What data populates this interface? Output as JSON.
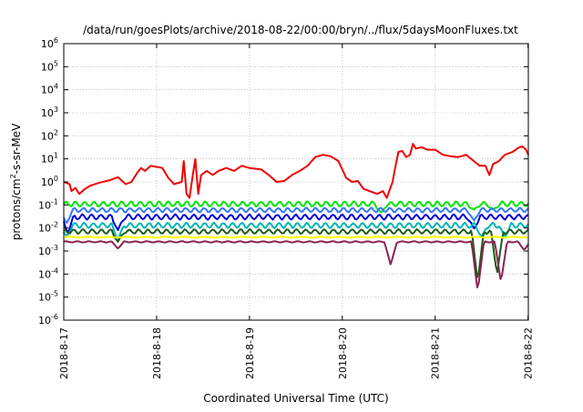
{
  "chart_data": {
    "type": "line",
    "title": "/data/run/goesPlots/archive/2018-08-22/00:00/bryn/../flux/5daysMoonFluxes.txt",
    "xlabel": "Coordinated Universal Time (UTC)",
    "ylabel_parts": {
      "before": "protons/cm",
      "sup": "2",
      "after": "-s-sr-MeV"
    },
    "y_scale": "log",
    "ylim": [
      1e-06,
      1000000.0
    ],
    "y_ticks": [
      {
        "value": 1e-06,
        "base": "10",
        "exp": "-6"
      },
      {
        "value": 1e-05,
        "base": "10",
        "exp": "-5"
      },
      {
        "value": 0.0001,
        "base": "10",
        "exp": "-4"
      },
      {
        "value": 0.001,
        "base": "10",
        "exp": "-3"
      },
      {
        "value": 0.01,
        "base": "10",
        "exp": "-2"
      },
      {
        "value": 0.1,
        "base": "10",
        "exp": "-1"
      },
      {
        "value": 1,
        "base": "10",
        "exp": "0"
      },
      {
        "value": 10,
        "base": "10",
        "exp": "1"
      },
      {
        "value": 100,
        "base": "10",
        "exp": "2"
      },
      {
        "value": 1000,
        "base": "10",
        "exp": "3"
      },
      {
        "value": 10000,
        "base": "10",
        "exp": "4"
      },
      {
        "value": 100000,
        "base": "10",
        "exp": "5"
      },
      {
        "value": 1000000,
        "base": "10",
        "exp": "6"
      }
    ],
    "xlim": [
      "2018-08-17T00:00",
      "2018-08-22T00:05"
    ],
    "x_ticks": [
      {
        "value": "2018-08-17T00:00",
        "label": "2018-8-17"
      },
      {
        "value": "2018-08-18T00:00",
        "label": "2018-8-18"
      },
      {
        "value": "2018-08-19T00:00",
        "label": "2018-8-19"
      },
      {
        "value": "2018-08-20T00:00",
        "label": "2018-8-20"
      },
      {
        "value": "2018-08-21T00:00",
        "label": "2018-8-21"
      },
      {
        "value": "2018-08-22T00:00",
        "label": "2018-8-22"
      }
    ],
    "grid": true,
    "series": [
      {
        "color": "#f00000",
        "points": [
          [
            "2018-08-17T00:00",
            1.0
          ],
          [
            "2018-08-17T01:30",
            0.8
          ],
          [
            "2018-08-17T02:00",
            0.4
          ],
          [
            "2018-08-17T03:00",
            0.55
          ],
          [
            "2018-08-17T04:00",
            0.3
          ],
          [
            "2018-08-17T05:30",
            0.5
          ],
          [
            "2018-08-17T07:00",
            0.7
          ],
          [
            "2018-08-17T09:00",
            0.9
          ],
          [
            "2018-08-17T12:00",
            1.2
          ],
          [
            "2018-08-17T14:00",
            1.6
          ],
          [
            "2018-08-17T16:00",
            0.8
          ],
          [
            "2018-08-17T17:30",
            1.0
          ],
          [
            "2018-08-17T19:00",
            2.5
          ],
          [
            "2018-08-17T20:00",
            4.0
          ],
          [
            "2018-08-17T21:00",
            3.0
          ],
          [
            "2018-08-17T22:30",
            5.0
          ],
          [
            "2018-08-18T00:00",
            4.5
          ],
          [
            "2018-08-18T01:30",
            4.0
          ],
          [
            "2018-08-18T03:00",
            1.5
          ],
          [
            "2018-08-18T04:00",
            1.0
          ],
          [
            "2018-08-18T04:30",
            0.8
          ],
          [
            "2018-08-18T06:30",
            1.0
          ],
          [
            "2018-08-18T07:00",
            8.0
          ],
          [
            "2018-08-18T07:45",
            0.3
          ],
          [
            "2018-08-18T08:30",
            0.2
          ],
          [
            "2018-08-18T09:15",
            1.5
          ],
          [
            "2018-08-18T10:00",
            10.0
          ],
          [
            "2018-08-18T10:45",
            0.3
          ],
          [
            "2018-08-18T11:30",
            2.0
          ],
          [
            "2018-08-18T13:00",
            3.0
          ],
          [
            "2018-08-18T14:30",
            2.0
          ],
          [
            "2018-08-18T16:00",
            3.0
          ],
          [
            "2018-08-18T18:00",
            4.0
          ],
          [
            "2018-08-18T20:00",
            3.0
          ],
          [
            "2018-08-18T22:00",
            5.0
          ],
          [
            "2018-08-19T00:00",
            4.0
          ],
          [
            "2018-08-19T03:00",
            3.5
          ],
          [
            "2018-08-19T05:00",
            2.0
          ],
          [
            "2018-08-19T07:00",
            1.0
          ],
          [
            "2018-08-19T09:00",
            1.1
          ],
          [
            "2018-08-19T11:00",
            2.0
          ],
          [
            "2018-08-19T13:00",
            3.0
          ],
          [
            "2018-08-19T15:00",
            5.0
          ],
          [
            "2018-08-19T17:00",
            12.0
          ],
          [
            "2018-08-19T19:00",
            15.0
          ],
          [
            "2018-08-19T21:00",
            13.0
          ],
          [
            "2018-08-19T23:00",
            8.0
          ],
          [
            "2018-08-20T01:00",
            1.5
          ],
          [
            "2018-08-20T02:30",
            1.0
          ],
          [
            "2018-08-20T04:00",
            1.1
          ],
          [
            "2018-08-20T05:30",
            0.5
          ],
          [
            "2018-08-20T07:00",
            0.4
          ],
          [
            "2018-08-20T09:00",
            0.3
          ],
          [
            "2018-08-20T10:30",
            0.4
          ],
          [
            "2018-08-20T11:30",
            0.2
          ],
          [
            "2018-08-20T12:30",
            0.6
          ],
          [
            "2018-08-20T13:00",
            1.0
          ],
          [
            "2018-08-20T13:30",
            3.0
          ],
          [
            "2018-08-20T14:30",
            20.0
          ],
          [
            "2018-08-20T15:30",
            22.0
          ],
          [
            "2018-08-20T16:30",
            12.0
          ],
          [
            "2018-08-20T17:30",
            15.0
          ],
          [
            "2018-08-20T18:15",
            45.0
          ],
          [
            "2018-08-20T19:00",
            28.0
          ],
          [
            "2018-08-20T20:30",
            32.0
          ],
          [
            "2018-08-20T22:00",
            25.0
          ],
          [
            "2018-08-21T00:00",
            25.0
          ],
          [
            "2018-08-21T02:00",
            15.0
          ],
          [
            "2018-08-21T04:00",
            13.0
          ],
          [
            "2018-08-21T06:00",
            12.0
          ],
          [
            "2018-08-21T08:00",
            15.0
          ],
          [
            "2018-08-21T10:00",
            8.0
          ],
          [
            "2018-08-21T11:30",
            5.0
          ],
          [
            "2018-08-21T13:00",
            5.0
          ],
          [
            "2018-08-21T14:00",
            2.0
          ],
          [
            "2018-08-21T15:00",
            6.0
          ],
          [
            "2018-08-21T16:30",
            8.0
          ],
          [
            "2018-08-21T18:00",
            15.0
          ],
          [
            "2018-08-21T20:00",
            20.0
          ],
          [
            "2018-08-21T21:30",
            30.0
          ],
          [
            "2018-08-21T22:30",
            35.0
          ],
          [
            "2018-08-21T23:30",
            25.0
          ],
          [
            "2018-08-22T00:05",
            15.0
          ]
        ]
      },
      {
        "color": "#00e600",
        "base": 0.11,
        "amp": 0.35,
        "period_h": 2.4,
        "phase": 0.0,
        "dips": [
          [
            "2018-08-20T10:00",
            0.045
          ],
          [
            "2018-08-21T10:00",
            0.06
          ],
          [
            "2018-08-21T15:00",
            0.06
          ]
        ]
      },
      {
        "color": "#3478f6",
        "base": 0.06,
        "amp": 0.3,
        "period_h": 2.4,
        "phase": 0.8,
        "dips": [
          [
            "2018-08-17T00:40",
            0.015
          ],
          [
            "2018-08-21T10:00",
            0.02
          ]
        ]
      },
      {
        "color": "#0000d8",
        "base": 0.03,
        "amp": 0.35,
        "period_h": 2.4,
        "phase": 1.6,
        "dips": [
          [
            "2018-08-17T01:00",
            0.006
          ],
          [
            "2018-08-17T14:00",
            0.008
          ],
          [
            "2018-08-21T10:00",
            0.009
          ]
        ]
      },
      {
        "color": "#00b4b4",
        "base": 0.013,
        "amp": 0.35,
        "period_h": 2.4,
        "phase": 0.4,
        "dips": [
          [
            "2018-08-17T00:40",
            0.004
          ],
          [
            "2018-08-17T14:00",
            0.003
          ],
          [
            "2018-08-21T12:00",
            0.004
          ],
          [
            "2018-08-21T18:00",
            0.004
          ]
        ]
      },
      {
        "color": "#1a5c1a",
        "base": 0.007,
        "amp": 0.3,
        "period_h": 2.4,
        "phase": 1.2,
        "dips": [
          [
            "2018-08-17T14:00",
            0.0025
          ],
          [
            "2018-08-21T11:00",
            5e-05
          ],
          [
            "2018-08-21T16:00",
            0.0001
          ]
        ]
      },
      {
        "color": "#ffff00",
        "base": 0.004,
        "amp": 0.05,
        "period_h": 5.0,
        "phase": 0.0,
        "dips": []
      },
      {
        "color": "#8b2252",
        "base": 0.0025,
        "amp": 0.08,
        "period_h": 3.0,
        "phase": 0.5,
        "dips": [
          [
            "2018-08-17T14:00",
            0.0013
          ],
          [
            "2018-08-20T12:30",
            0.00025
          ],
          [
            "2018-08-21T11:00",
            1.8e-05
          ],
          [
            "2018-08-21T17:00",
            4.5e-05
          ],
          [
            "2018-08-21T23:00",
            0.0011
          ]
        ]
      }
    ]
  }
}
